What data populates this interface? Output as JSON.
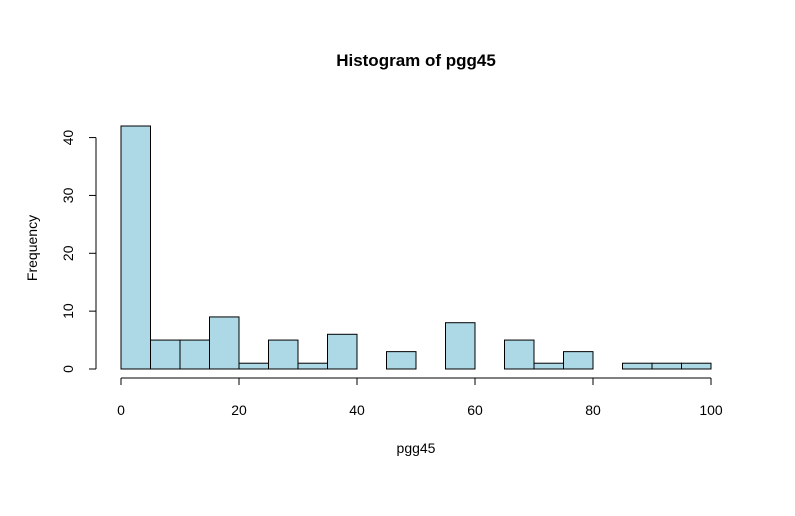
{
  "chart_data": {
    "type": "bar",
    "title": "Histogram of pgg45",
    "xlabel": "pgg45",
    "ylabel": "Frequency",
    "bin_edges": [
      0,
      5,
      10,
      15,
      20,
      25,
      30,
      35,
      40,
      45,
      50,
      55,
      60,
      65,
      70,
      75,
      80,
      85,
      90,
      95,
      100
    ],
    "values": [
      42,
      5,
      5,
      9,
      1,
      5,
      1,
      6,
      0,
      3,
      0,
      8,
      0,
      5,
      1,
      3,
      0,
      1,
      1,
      1
    ],
    "xlim": [
      0,
      100
    ],
    "ylim": [
      0,
      42
    ],
    "x_ticks": [
      0,
      20,
      40,
      60,
      80,
      100
    ],
    "y_ticks": [
      0,
      10,
      20,
      30,
      40
    ],
    "bar_color": "#ADD8E6",
    "edge_color": "#000000",
    "grid": false
  }
}
